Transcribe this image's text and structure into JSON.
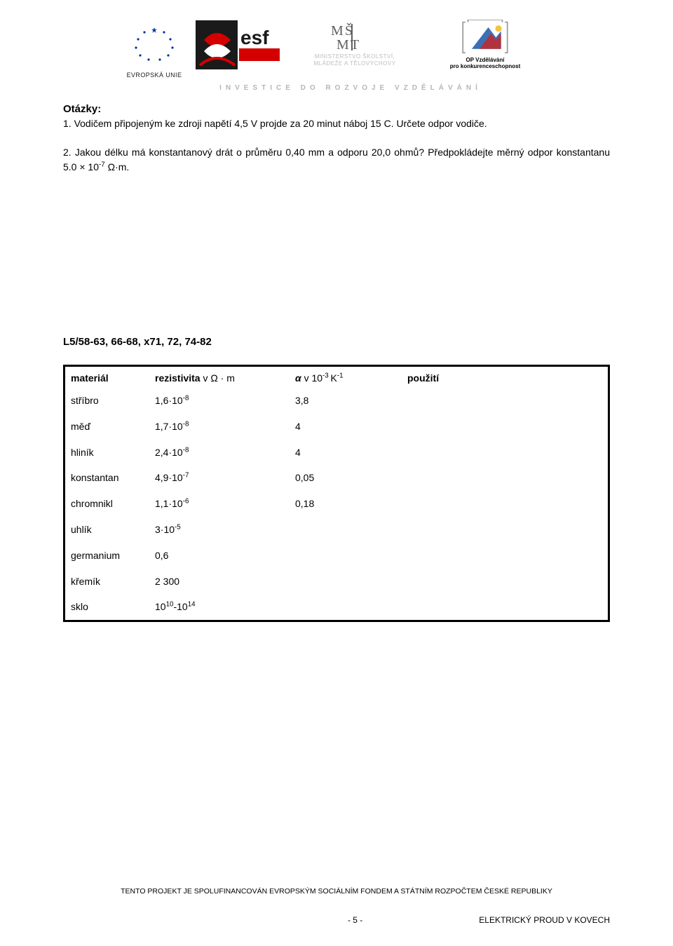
{
  "header": {
    "eu_caption": "EVROPSKÁ UNIE",
    "msmt_line1": "MINISTERSTVO ŠKOLSTVÍ,",
    "msmt_line2": "MLÁDEŽE A TĚLOVÝCHOVY",
    "opvk_line1": "OP Vzdělávání",
    "opvk_line2": "pro konkurenceschopnost",
    "tagline": "INVESTICE DO ROZVOJE VZDĚLÁVÁNÍ"
  },
  "questions": {
    "heading": "Otázky:",
    "q1": "1. Vodičem připojeným ke zdroji napětí 4,5 V projde za 20 minut náboj 15 C. Určete odpor vodiče.",
    "q2_a": "2. Jakou délku má konstantanový drát o průměru 0,40 mm a odporu 20,0 ohmů? Předpokládejte měrný odpor konstantanu 5.0 × 10",
    "q2_exp": "-7",
    "q2_b": " Ω·m."
  },
  "ref": "L5/58-63, 66-68, x71, 72, 74-82",
  "table": {
    "h_material": "materiál",
    "h_resist_label": "rezistivita",
    "h_resist_unit": " v Ω · m",
    "h_alpha_pre": "α",
    "h_alpha_mid": " v 10",
    "h_alpha_exp1": "-3 ",
    "h_alpha_k": "K",
    "h_alpha_exp2": "-1",
    "h_use": "použití",
    "rows": [
      {
        "m": "stříbro",
        "r_base": "1,6·10",
        "r_exp": "-8",
        "a": "3,8"
      },
      {
        "m": "měď",
        "r_base": "1,7·10",
        "r_exp": "-8",
        "a": "4"
      },
      {
        "m": "hliník",
        "r_base": "2,4·10",
        "r_exp": "-8",
        "a": "4"
      },
      {
        "m": "konstantan",
        "r_base": "4,9·10",
        "r_exp": "-7",
        "a": "0,05"
      },
      {
        "m": "chromnikl",
        "r_base": "1,1·10",
        "r_exp": "-6",
        "a": "0,18"
      },
      {
        "m": "uhlík",
        "r_base": "3·10",
        "r_exp": "-5",
        "a": ""
      },
      {
        "m": "germanium",
        "r_base": "0,6",
        "r_exp": "",
        "a": ""
      },
      {
        "m": "křemík",
        "r_base": "2 300",
        "r_exp": "",
        "a": ""
      },
      {
        "m": "sklo",
        "r_base": "10",
        "r_exp": "10",
        "r_tail": "-10",
        "r_exp2": "14",
        "a": ""
      }
    ]
  },
  "footer": {
    "funding": "TENTO PROJEKT JE SPOLUFINANCOVÁN EVROPSKÝM SOCIÁLNÍM FONDEM A STÁTNÍM ROZPOČTEM ČESKÉ REPUBLIKY",
    "page": "- 5 -",
    "topic": "ELEKTRICKÝ PROUD V KOVECH"
  },
  "colors": {
    "text": "#000000",
    "grey_caption": "#b6b6b6",
    "eu_blue": "#003399",
    "eu_yellow": "#ffcc00",
    "esf_red": "#d40000",
    "esf_dark": "#1a1a1a",
    "opvk_blue": "#3b6fb6",
    "opvk_red": "#c62828",
    "opvk_yellow": "#f6c243",
    "opvk_grey": "#9e9e9e"
  }
}
